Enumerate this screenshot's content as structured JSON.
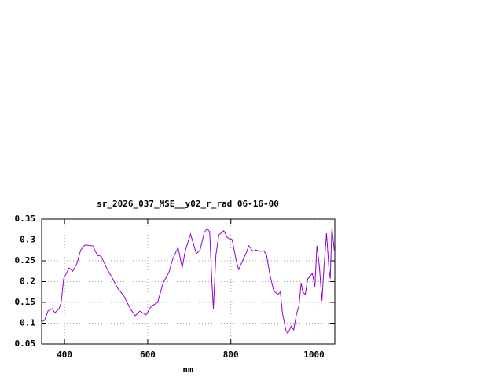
{
  "chart_data": {
    "type": "line",
    "title": "sr_2026_037_MSE__y02_r_rad 06-16-00",
    "x_label": "nm",
    "x": [
      345,
      352,
      360,
      370,
      377,
      387,
      392,
      398,
      411,
      420,
      430,
      439,
      449,
      468,
      479,
      488,
      500,
      513,
      528,
      543,
      558,
      570,
      581,
      596,
      609,
      624,
      637,
      651,
      660,
      673,
      683,
      690,
      703,
      717,
      726,
      736,
      743,
      749,
      754,
      758,
      764,
      771,
      783,
      792,
      803,
      813,
      819,
      828,
      837,
      843,
      853,
      860,
      870,
      879,
      886,
      894,
      903,
      913,
      919,
      924,
      932,
      937,
      945,
      951,
      958,
      964,
      969,
      973,
      979,
      985,
      990,
      996,
      1002,
      1007,
      1013,
      1019,
      1024,
      1030,
      1036,
      1039,
      1043,
      1049
    ],
    "series": [
      {
        "name": "sr_2026_037_MSE__y02_r_rad",
        "color": "#9400d3",
        "values": [
          0.103,
          0.107,
          0.129,
          0.135,
          0.125,
          0.135,
          0.15,
          0.207,
          0.233,
          0.225,
          0.244,
          0.276,
          0.288,
          0.286,
          0.263,
          0.261,
          0.235,
          0.212,
          0.184,
          0.165,
          0.135,
          0.118,
          0.129,
          0.12,
          0.141,
          0.15,
          0.197,
          0.222,
          0.254,
          0.282,
          0.233,
          0.273,
          0.314,
          0.267,
          0.276,
          0.318,
          0.327,
          0.32,
          0.207,
          0.135,
          0.263,
          0.312,
          0.322,
          0.305,
          0.301,
          0.25,
          0.229,
          0.25,
          0.269,
          0.286,
          0.273,
          0.276,
          0.273,
          0.274,
          0.263,
          0.216,
          0.178,
          0.169,
          0.175,
          0.125,
          0.084,
          0.075,
          0.093,
          0.084,
          0.122,
          0.144,
          0.197,
          0.175,
          0.169,
          0.207,
          0.212,
          0.22,
          0.188,
          0.286,
          0.235,
          0.154,
          0.235,
          0.316,
          0.229,
          0.207,
          0.329,
          0.273
        ]
      }
    ],
    "xlim": [
      345,
      1050
    ],
    "ylim": [
      0.05,
      0.35
    ],
    "xticks": [
      400,
      600,
      800,
      1000
    ],
    "yticks": [
      0.05,
      0.1,
      0.15,
      0.2,
      0.25,
      0.3,
      0.35
    ],
    "grid": true
  }
}
